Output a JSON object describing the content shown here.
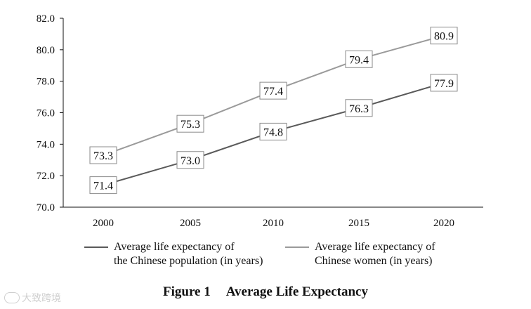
{
  "chart_data": {
    "type": "line",
    "title": "Figure 1    Average Life Expectancy",
    "caption_number": "Figure 1",
    "caption_text": "Average Life Expectancy",
    "categories": [
      "2000",
      "2005",
      "2010",
      "2015",
      "2020"
    ],
    "ylim": [
      70.0,
      82.0
    ],
    "yticks": [
      "70.0",
      "72.0",
      "74.0",
      "76.0",
      "78.0",
      "80.0",
      "82.0"
    ],
    "xlabel": "",
    "ylabel": "",
    "grid": false,
    "legend_position": "bottom",
    "series": [
      {
        "name": "Average life expectancy of the Chinese population (in years)",
        "name_line1": "Average life expectancy of",
        "name_line2": "the Chinese population (in years)",
        "color": "#5a5a5a",
        "values": [
          71.4,
          73.0,
          74.8,
          76.3,
          77.9
        ],
        "labels": [
          "71.4",
          "73.0",
          "74.8",
          "76.3",
          "77.9"
        ]
      },
      {
        "name": "Average life expectancy of Chinese women (in years)",
        "name_line1": "Average life expectancy of",
        "name_line2": "Chinese women (in years)",
        "color": "#9a9a9a",
        "values": [
          73.3,
          75.3,
          77.4,
          79.4,
          80.9
        ],
        "labels": [
          "73.3",
          "75.3",
          "77.4",
          "79.4",
          "80.9"
        ]
      }
    ]
  },
  "watermark": {
    "text": "大致跨境",
    "icon": "cloud-logo-icon"
  }
}
